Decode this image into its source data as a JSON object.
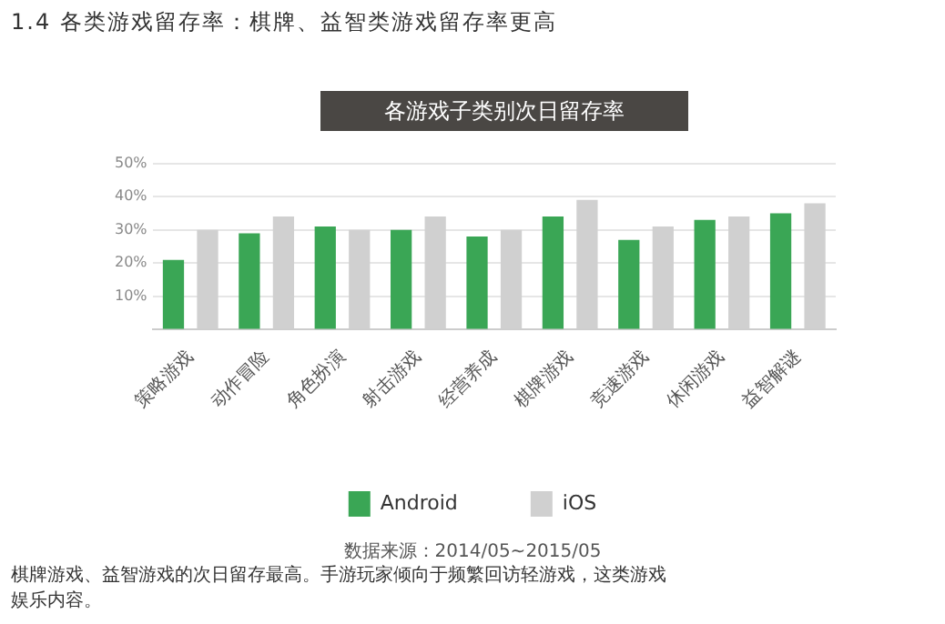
{
  "chart_data": {
    "type": "bar",
    "subtitle": "1.4 各类游戏留存率：棋牌、益智类游戏留存率更高",
    "title": "各游戏子类别次日留存率",
    "categories": [
      "策略游戏",
      "动作冒险",
      "角色扮演",
      "射击游戏",
      "经营养成",
      "棋牌游戏",
      "竞速游戏",
      "休闲游戏",
      "益智解谜"
    ],
    "series": [
      {
        "name": "Android",
        "color": "#3aa655",
        "values": [
          21,
          29,
          31,
          30,
          28,
          34,
          27,
          33,
          35
        ]
      },
      {
        "name": "iOS",
        "color": "#d0d0d0",
        "values": [
          30,
          34,
          30,
          34,
          30,
          39,
          31,
          34,
          38
        ]
      }
    ],
    "ylim": [
      0,
      50
    ],
    "yticks": [
      {
        "value": 0,
        "label": null
      },
      {
        "value": 10,
        "label": "10%"
      },
      {
        "value": 20,
        "label": "20%"
      },
      {
        "value": 30,
        "label": "30%"
      },
      {
        "value": 40,
        "label": "40%"
      },
      {
        "value": 50,
        "label": "50%"
      }
    ],
    "grid": "y",
    "legend": "bottom",
    "annotations": [
      "数据来源：2014/05~2015/05",
      "棋牌游戏、益智游戏的次日留存最高。手游玩家倾向于频繁回访轻游戏，这类游戏",
      "娱乐内容。"
    ]
  }
}
